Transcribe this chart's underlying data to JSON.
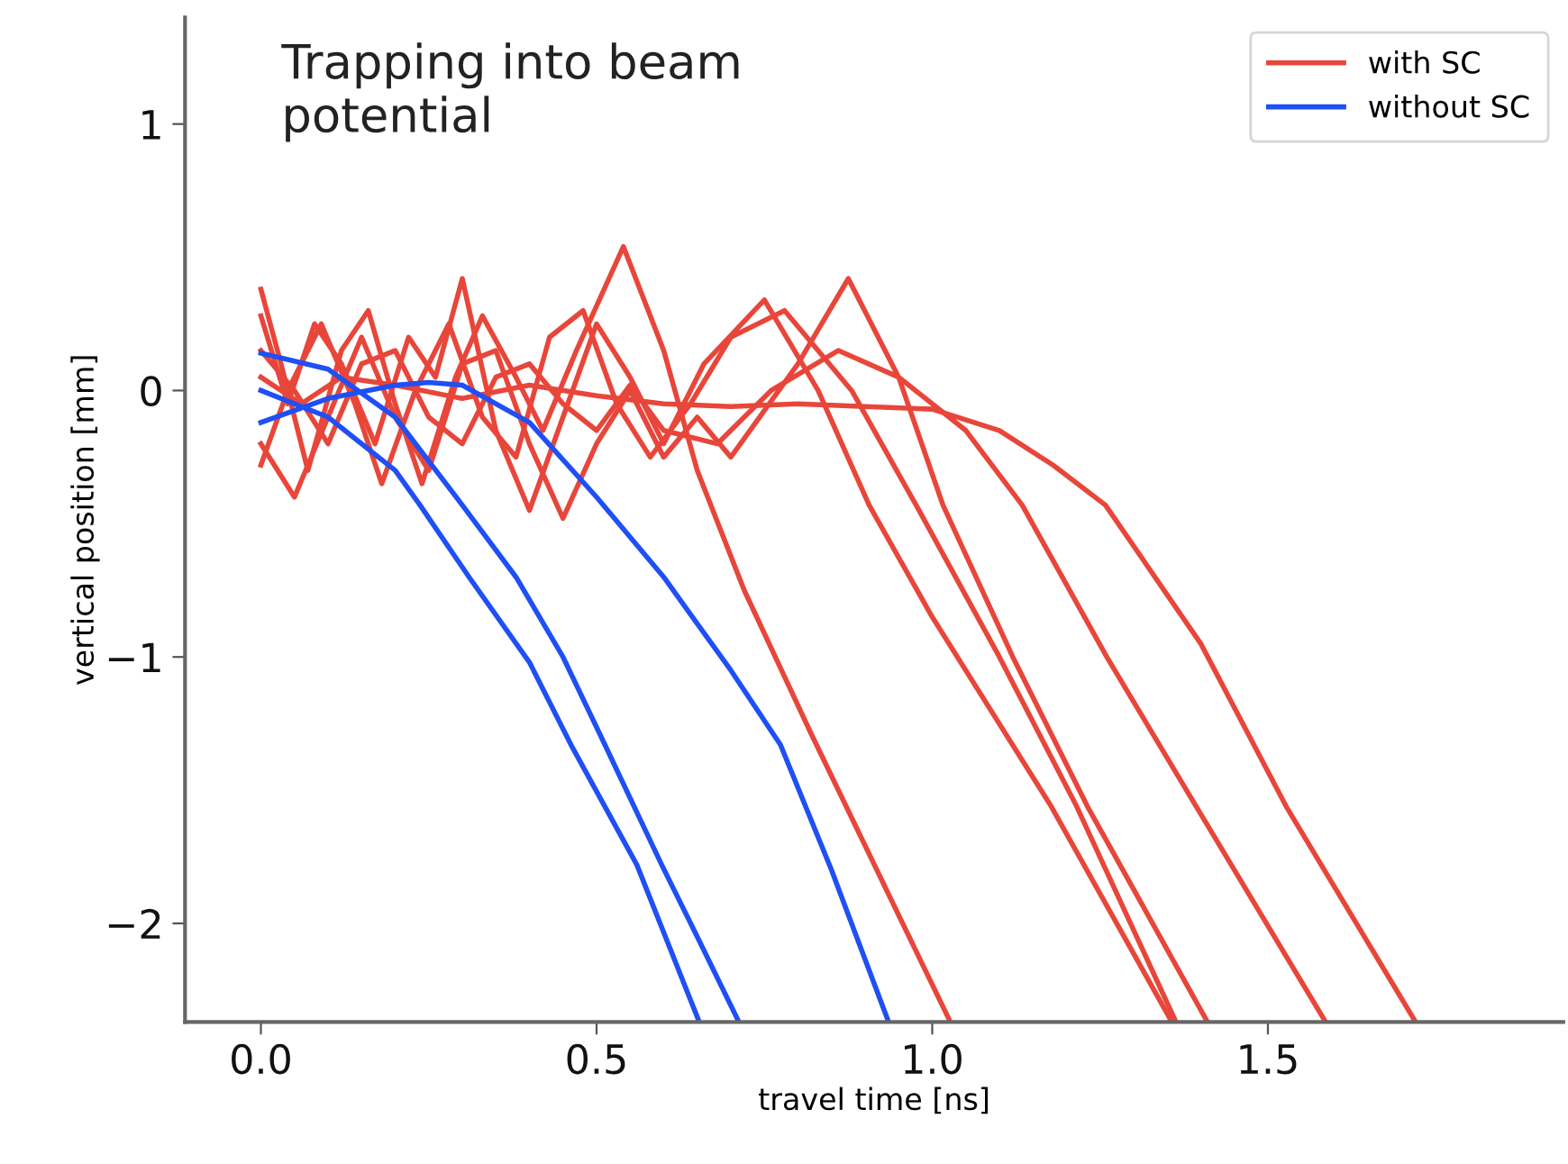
{
  "chart_data": {
    "type": "line",
    "title": "Trapping into beam\npotential",
    "xlabel": "travel time [ns]",
    "ylabel": "vertical position [mm]",
    "xlim": [
      -0.113,
      1.94
    ],
    "ylim": [
      -2.37,
      1.4
    ],
    "xticks": [
      {
        "value": 0,
        "label": "0.0"
      },
      {
        "value": 0.5,
        "label": "0.5"
      },
      {
        "value": 1,
        "label": "1.0"
      },
      {
        "value": 1.5,
        "label": "1.5"
      }
    ],
    "yticks": [
      {
        "value": -2,
        "label": "−2"
      },
      {
        "value": -1,
        "label": "−1"
      },
      0,
      1
    ],
    "grid": false,
    "legend": "top right",
    "marker": "none",
    "line_style": "solid",
    "series": [
      {
        "name": "with SC",
        "color": "#e8463a",
        "x": [
          0,
          0.03,
          0.07,
          0.12,
          0.16,
          0.2,
          0.24,
          0.29,
          0.33,
          0.38,
          0.42,
          0.47,
          0.54,
          0.6,
          0.65,
          0.72,
          0.82,
          0.954,
          1.027
        ],
        "values": [
          0.38,
          0.1,
          -0.3,
          0.15,
          0.3,
          -0.05,
          -0.35,
          0.05,
          0.28,
          0.05,
          -0.15,
          0.15,
          0.54,
          0.15,
          -0.3,
          -0.75,
          -1.29,
          -1.99,
          -2.37
        ]
      },
      {
        "color": "#e8463a",
        "x": [
          0,
          0.04,
          0.08,
          0.12,
          0.17,
          0.22,
          0.26,
          0.3,
          0.35,
          0.4,
          0.45,
          0.5,
          0.55,
          0.6,
          0.66,
          0.75,
          0.83,
          0.906,
          1.0,
          1.177,
          1.357
        ],
        "values": [
          0.28,
          -0.05,
          0.25,
          0.1,
          -0.2,
          0.2,
          0.05,
          0.42,
          -0.15,
          -0.45,
          -0.1,
          0.25,
          0.05,
          -0.2,
          0.1,
          0.34,
          0.0,
          -0.43,
          -0.85,
          -1.56,
          -2.37
        ]
      },
      {
        "color": "#e8463a",
        "x": [
          0,
          0.04,
          0.09,
          0.14,
          0.18,
          0.23,
          0.28,
          0.33,
          0.38,
          0.43,
          0.48,
          0.53,
          0.58,
          0.64,
          0.7,
          0.78,
          0.88,
          0.976,
          1.1,
          1.215,
          1.363
        ],
        "values": [
          -0.28,
          0.0,
          0.25,
          -0.05,
          -0.35,
          0.0,
          0.25,
          -0.1,
          -0.25,
          0.2,
          0.3,
          -0.05,
          -0.25,
          -0.05,
          0.2,
          0.3,
          0.0,
          -0.43,
          -1.0,
          -1.56,
          -2.37
        ]
      },
      {
        "color": "#e8463a",
        "x": [
          0,
          0.05,
          0.1,
          0.15,
          0.2,
          0.25,
          0.3,
          0.35,
          0.4,
          0.45,
          0.5,
          0.55,
          0.6,
          0.65,
          0.7,
          0.8,
          0.875,
          0.95,
          1.016,
          1.12,
          1.231,
          1.41
        ],
        "values": [
          -0.2,
          -0.4,
          -0.1,
          0.2,
          -0.1,
          -0.3,
          0.1,
          0.15,
          -0.2,
          -0.48,
          -0.2,
          0.0,
          -0.25,
          -0.1,
          -0.25,
          0.1,
          0.42,
          0.05,
          -0.43,
          -1.0,
          -1.56,
          -2.37
        ]
      },
      {
        "color": "#e8463a",
        "x": [
          0,
          0.05,
          0.1,
          0.15,
          0.2,
          0.25,
          0.3,
          0.35,
          0.4,
          0.45,
          0.5,
          0.55,
          0.6,
          0.68,
          0.76,
          0.86,
          0.95,
          1.05,
          1.134,
          1.26,
          1.393,
          1.586
        ],
        "values": [
          0.15,
          0.0,
          -0.2,
          0.1,
          0.15,
          -0.1,
          -0.2,
          0.05,
          0.1,
          -0.05,
          -0.15,
          0.02,
          -0.15,
          -0.2,
          0.0,
          0.15,
          0.05,
          -0.15,
          -0.43,
          -1.0,
          -1.56,
          -2.37
        ]
      },
      {
        "color": "#e8463a",
        "x": [
          0,
          0.06,
          0.12,
          0.2,
          0.3,
          0.4,
          0.5,
          0.6,
          0.7,
          0.8,
          0.9,
          1.0,
          1.1,
          1.18,
          1.258,
          1.4,
          1.527,
          1.72
        ],
        "values": [
          0.05,
          -0.05,
          0.05,
          0.02,
          -0.03,
          0.02,
          -0.02,
          -0.05,
          -0.06,
          -0.05,
          -0.06,
          -0.07,
          -0.15,
          -0.28,
          -0.43,
          -0.95,
          -1.56,
          -2.37
        ]
      },
      {
        "name": "without SC",
        "color": "#1f4ff5",
        "x": [
          0,
          0.1,
          0.2,
          0.237,
          0.31,
          0.4,
          0.462,
          0.56,
          0.653
        ],
        "values": [
          0.0,
          -0.1,
          -0.3,
          -0.43,
          -0.7,
          -1.02,
          -1.33,
          -1.78,
          -2.37
        ]
      },
      {
        "color": "#1f4ff5",
        "x": [
          0,
          0.1,
          0.2,
          0.3,
          0.38,
          0.45,
          0.505,
          0.597,
          0.65,
          0.712
        ],
        "values": [
          0.14,
          0.08,
          -0.1,
          -0.43,
          -0.7,
          -1.0,
          -1.29,
          -1.78,
          -2.05,
          -2.37
        ]
      },
      {
        "color": "#1f4ff5",
        "x": [
          0,
          0.1,
          0.2,
          0.25,
          0.3,
          0.4,
          0.5,
          0.6,
          0.7,
          0.774,
          0.85,
          0.935
        ],
        "values": [
          -0.12,
          -0.03,
          0.02,
          0.03,
          0.02,
          -0.12,
          -0.4,
          -0.7,
          -1.05,
          -1.33,
          -1.8,
          -2.37
        ]
      }
    ]
  }
}
